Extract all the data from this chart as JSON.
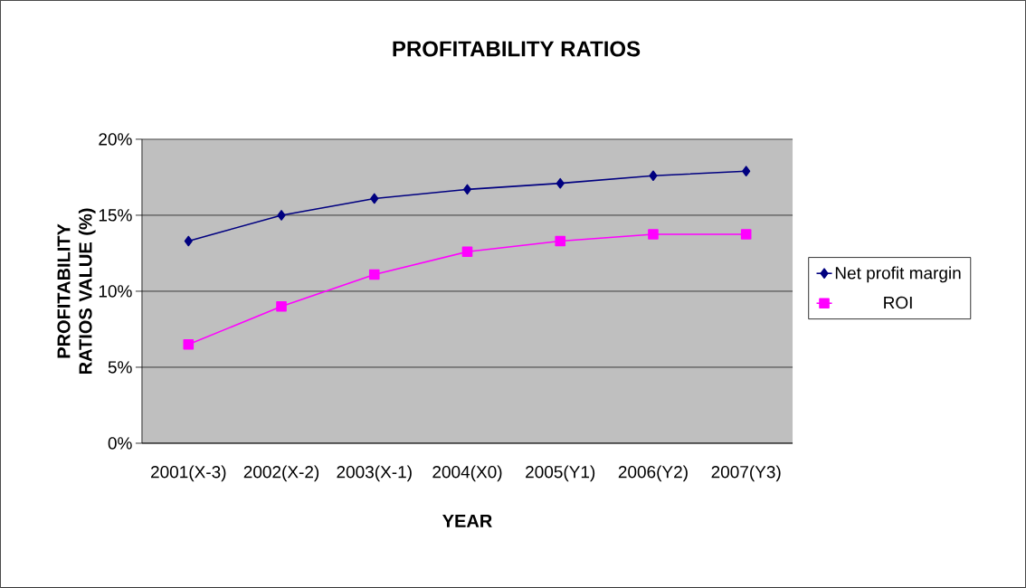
{
  "chart_data": {
    "type": "line",
    "title": "PROFITABILITY RATIOS",
    "xlabel": "YEAR",
    "ylabel": "PROFITABILITY RATIOS VALUE (%)",
    "categories": [
      "2001(X-3)",
      "2002(X-2)",
      "2003(X-1)",
      "2004(X0)",
      "2005(Y1)",
      "2006(Y2)",
      "2007(Y3)"
    ],
    "series": [
      {
        "name": "Net profit margin",
        "color": "#000080",
        "marker": "diamond",
        "values": [
          13.3,
          15.0,
          16.1,
          16.7,
          17.1,
          17.6,
          17.9
        ]
      },
      {
        "name": "ROI",
        "color": "#ff00ff",
        "marker": "square",
        "values": [
          6.5,
          9.0,
          11.1,
          12.6,
          13.3,
          13.75,
          13.75
        ]
      }
    ],
    "ylim": [
      0,
      20
    ],
    "yticks": [
      {
        "value": 0,
        "label": "0%"
      },
      {
        "value": 5,
        "label": "5%"
      },
      {
        "value": 10,
        "label": "10%"
      },
      {
        "value": 15,
        "label": "15%"
      },
      {
        "value": 20,
        "label": "20%"
      }
    ],
    "grid": "y",
    "legend": "right",
    "line_style": "solid"
  }
}
